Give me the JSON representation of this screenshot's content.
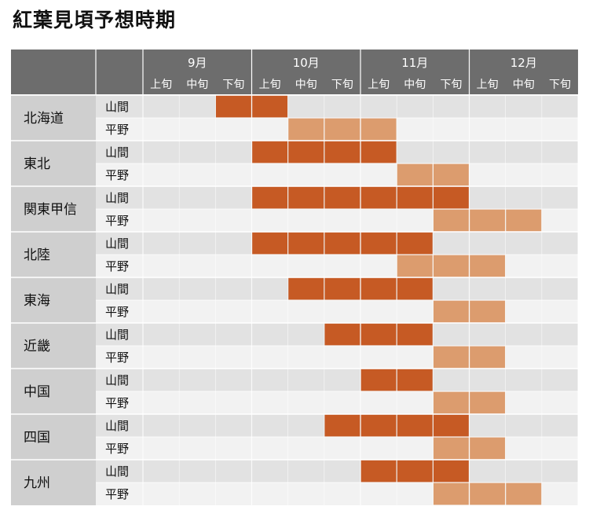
{
  "chart_data": {
    "type": "heatmap",
    "title": "紅葉見頃予想時期",
    "months": [
      "9月",
      "10月",
      "11月",
      "12月"
    ],
    "periods": [
      "上旬",
      "中旬",
      "下旬"
    ],
    "columns": [
      "9月上旬",
      "9月中旬",
      "9月下旬",
      "10月上旬",
      "10月中旬",
      "10月下旬",
      "11月上旬",
      "11月中旬",
      "11月下旬",
      "12月上旬",
      "12月中旬",
      "12月下旬"
    ],
    "legend_types": {
      "mountain": "山間",
      "plain": "平野"
    },
    "colors": {
      "header": "#6d6d6d",
      "region_bg": "#cfcfcf",
      "row_dark": "#e2e2e2",
      "row_light": "#f2f2f2",
      "mountain": "#c65a24",
      "plain": "#dc9c6e",
      "divider": "#ffffff"
    },
    "regions": [
      {
        "name": "北海道",
        "rows": [
          {
            "type": "山間",
            "kind": "mountain",
            "start": 2,
            "end": 3
          },
          {
            "type": "平野",
            "kind": "plain",
            "start": 4,
            "end": 6
          }
        ]
      },
      {
        "name": "東北",
        "rows": [
          {
            "type": "山間",
            "kind": "mountain",
            "start": 3,
            "end": 6
          },
          {
            "type": "平野",
            "kind": "plain",
            "start": 7,
            "end": 8
          }
        ]
      },
      {
        "name": "関東甲信",
        "rows": [
          {
            "type": "山間",
            "kind": "mountain",
            "start": 3,
            "end": 8
          },
          {
            "type": "平野",
            "kind": "plain",
            "start": 8,
            "end": 10
          }
        ]
      },
      {
        "name": "北陸",
        "rows": [
          {
            "type": "山間",
            "kind": "mountain",
            "start": 3,
            "end": 7
          },
          {
            "type": "平野",
            "kind": "plain",
            "start": 7,
            "end": 9
          }
        ]
      },
      {
        "name": "東海",
        "rows": [
          {
            "type": "山間",
            "kind": "mountain",
            "start": 4,
            "end": 7
          },
          {
            "type": "平野",
            "kind": "plain",
            "start": 8,
            "end": 9
          }
        ]
      },
      {
        "name": "近畿",
        "rows": [
          {
            "type": "山間",
            "kind": "mountain",
            "start": 5,
            "end": 7
          },
          {
            "type": "平野",
            "kind": "plain",
            "start": 8,
            "end": 9
          }
        ]
      },
      {
        "name": "中国",
        "rows": [
          {
            "type": "山間",
            "kind": "mountain",
            "start": 6,
            "end": 7
          },
          {
            "type": "平野",
            "kind": "plain",
            "start": 8,
            "end": 9
          }
        ]
      },
      {
        "name": "四国",
        "rows": [
          {
            "type": "山間",
            "kind": "mountain",
            "start": 5,
            "end": 8
          },
          {
            "type": "平野",
            "kind": "plain",
            "start": 8,
            "end": 9
          }
        ]
      },
      {
        "name": "九州",
        "rows": [
          {
            "type": "山間",
            "kind": "mountain",
            "start": 6,
            "end": 8
          },
          {
            "type": "平野",
            "kind": "plain",
            "start": 8,
            "end": 10
          }
        ]
      }
    ]
  }
}
